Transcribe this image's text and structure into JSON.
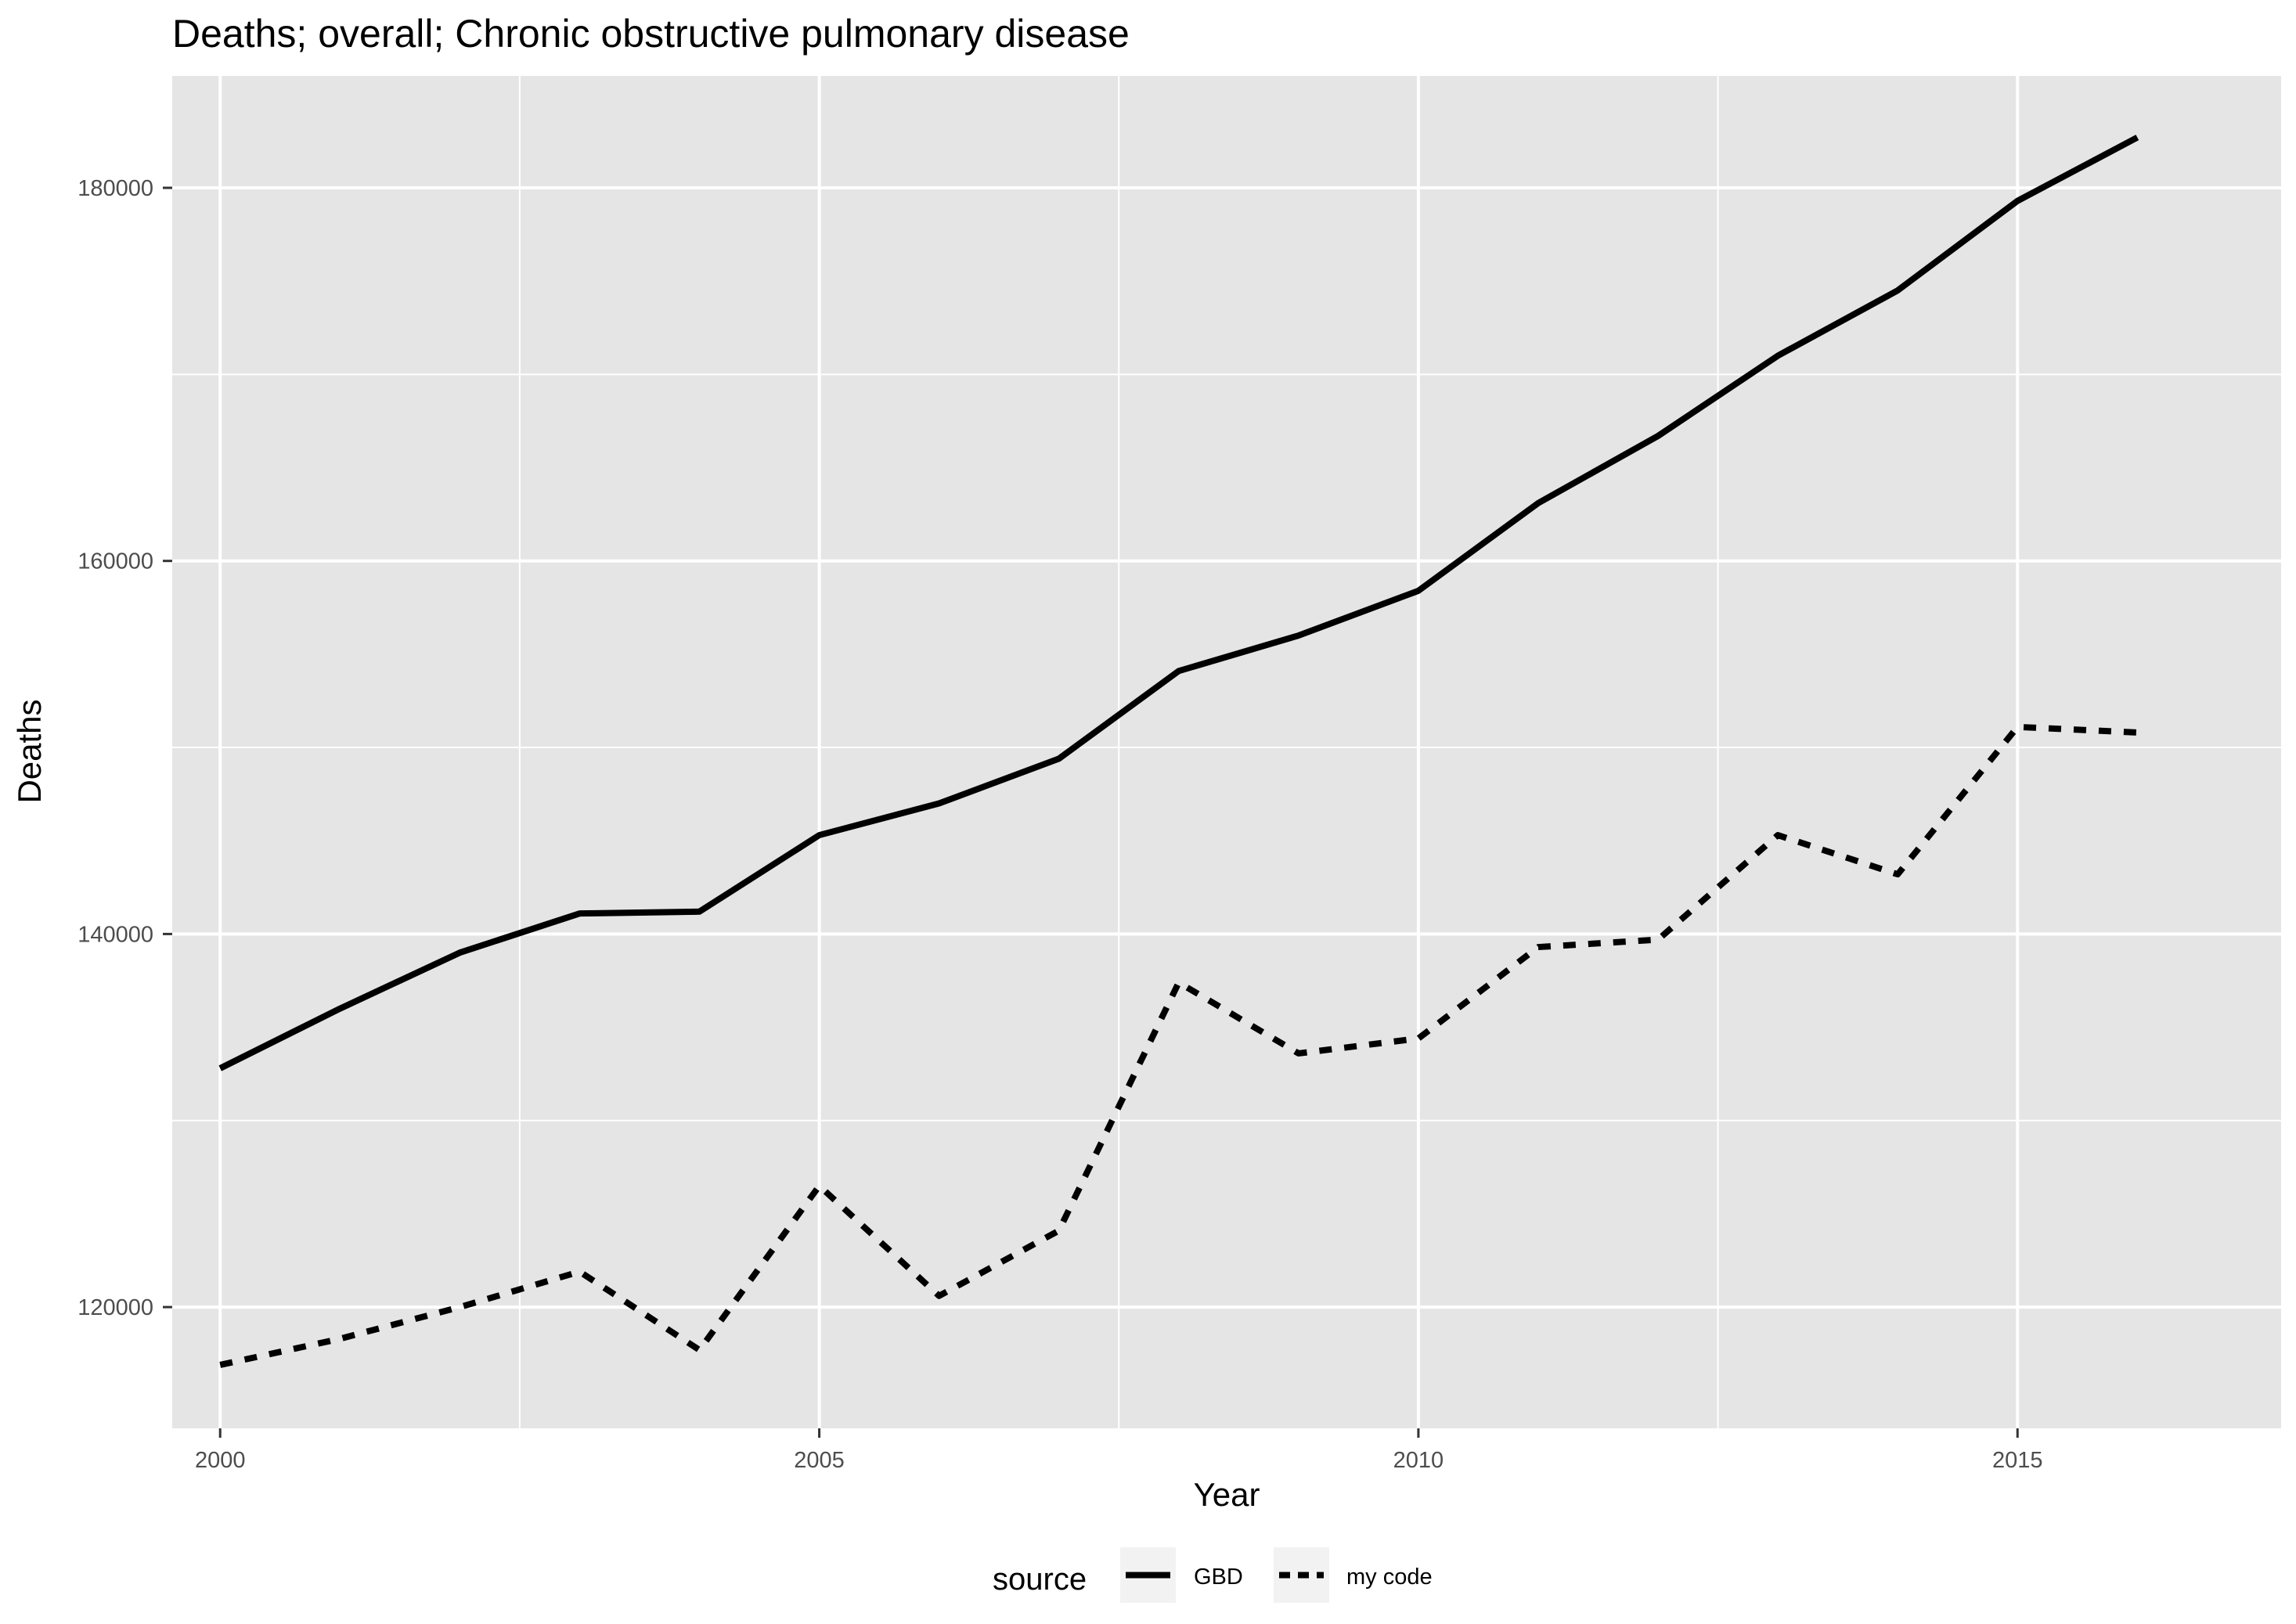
{
  "chart_data": {
    "type": "line",
    "title": "Deaths; overall; Chronic obstructive pulmonary disease",
    "xlabel": "Year",
    "ylabel": "Deaths",
    "xlim": [
      1999.6,
      2017.2
    ],
    "ylim": [
      113500,
      186000
    ],
    "x_ticks": [
      2000,
      2005,
      2010,
      2015
    ],
    "x_tick_labels": [
      "2000",
      "2005",
      "2010",
      "2015"
    ],
    "x_minor_ticks": [
      2002.5,
      2007.5,
      2012.5
    ],
    "y_ticks": [
      120000,
      140000,
      160000,
      180000
    ],
    "y_tick_labels": [
      "120000",
      "140000",
      "160000",
      "180000"
    ],
    "y_minor_ticks": [
      130000,
      150000,
      170000
    ],
    "grid": true,
    "panel_background": "#e5e5e5",
    "grid_color": "#ffffff",
    "legend": {
      "title": "source",
      "position": "bottom"
    },
    "x": [
      2000,
      2001,
      2002,
      2003,
      2004,
      2005,
      2006,
      2007,
      2008,
      2009,
      2010,
      2011,
      2012,
      2013,
      2014,
      2015,
      2016
    ],
    "series": [
      {
        "name": "GBD",
        "linetype": "solid",
        "color": "#000000",
        "values": [
          132800,
          136000,
          139000,
          141100,
          141200,
          145300,
          147000,
          149400,
          154100,
          156000,
          158400,
          163100,
          166700,
          171000,
          174500,
          179300,
          182700
        ]
      },
      {
        "name": "my code",
        "linetype": "dashed",
        "color": "#000000",
        "values": [
          116900,
          118300,
          120000,
          121900,
          117700,
          126500,
          120600,
          124100,
          137400,
          133600,
          134400,
          139300,
          139700,
          145300,
          143200,
          151100,
          150800
        ]
      }
    ]
  }
}
